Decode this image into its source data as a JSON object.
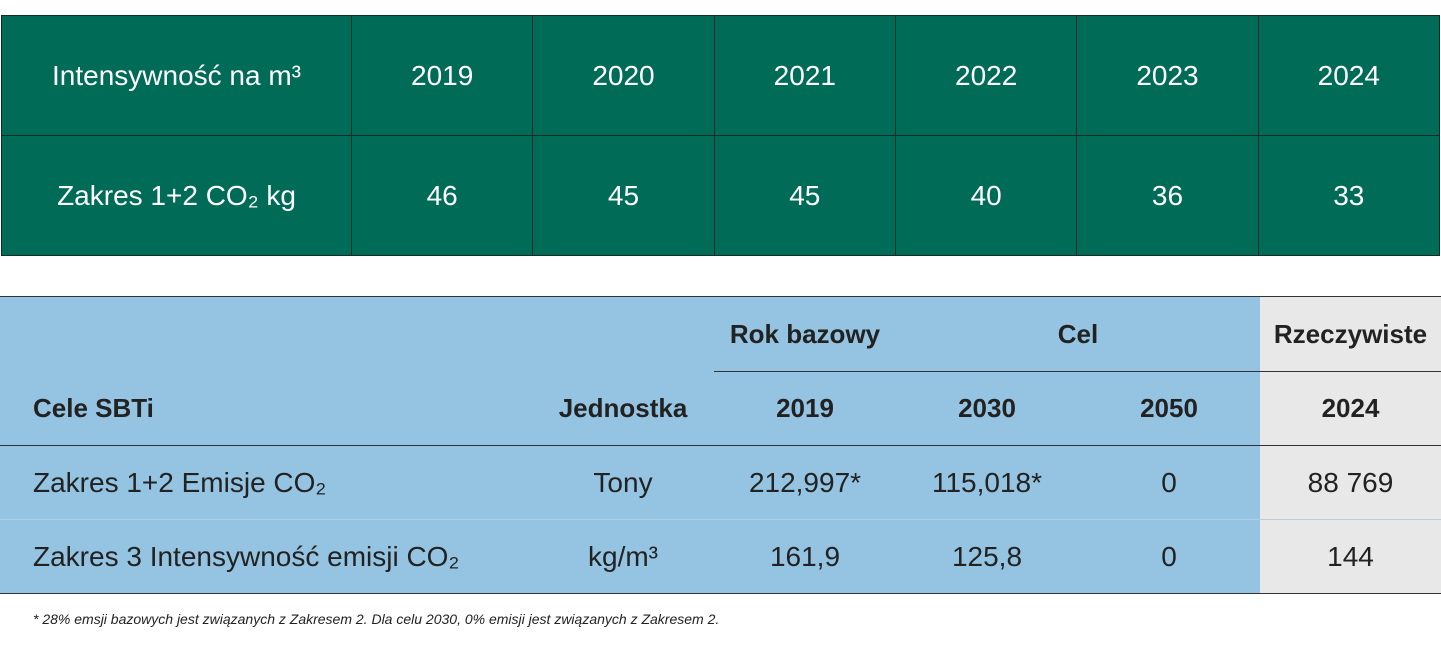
{
  "intensity_table": {
    "header_label": "Intensywność na m³",
    "years": [
      "2019",
      "2020",
      "2021",
      "2022",
      "2023",
      "2024"
    ],
    "row_label": "Zakres 1+2 CO₂ kg",
    "values": [
      "46",
      "45",
      "45",
      "40",
      "36",
      "33"
    ]
  },
  "sbti_table": {
    "group_base": "Rok bazowy",
    "group_target": "Cel",
    "group_actual": "Rzeczywiste",
    "col_label": "Cele SBTi",
    "col_unit": "Jednostka",
    "col_base_year": "2019",
    "col_target_2030": "2030",
    "col_target_2050": "2050",
    "col_actual_year": "2024",
    "rows": [
      {
        "label": "Zakres 1+2 Emisje CO₂",
        "unit": "Tony",
        "base": "212,997*",
        "t2030": "115,018*",
        "t2050": "0",
        "actual": "88 769"
      },
      {
        "label": "Zakres 3 Intensywność emisji CO₂",
        "unit": "kg/m³",
        "base": "161,9",
        "t2030": "125,8",
        "t2050": "0",
        "actual": "144"
      }
    ]
  },
  "footnote": "* 28% emsji bazowych jest związanych z Zakresem 2. Dla celu 2030, 0% emisji jest związanych z Zakresem 2."
}
